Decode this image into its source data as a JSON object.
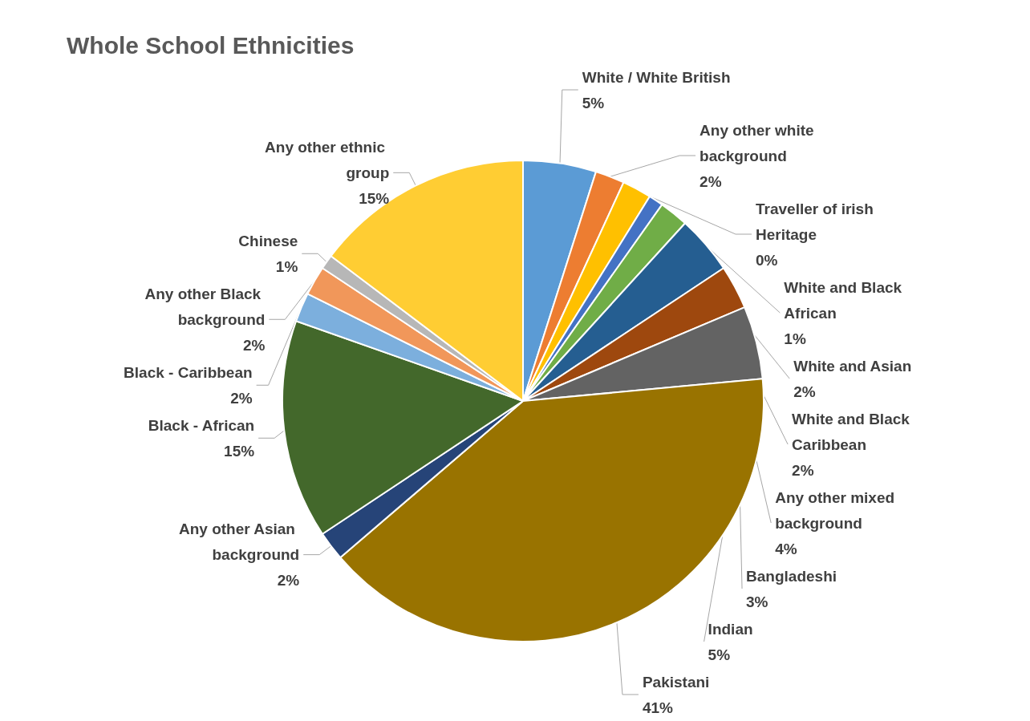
{
  "chart_data": {
    "type": "pie",
    "title": "Whole School Ethnicities",
    "categories": [
      "White / White British",
      "Any other white background",
      "White and Asian",
      "Traveller of irish Heritage",
      "White and Black African",
      "White and Black Caribbean",
      "Any other mixed background",
      "Bangladeshi",
      "Indian",
      "Pakistani",
      "Any other Asian background",
      "Black - African",
      "Black - Caribbean",
      "Any other Black background",
      "Chinese",
      "Any other ethnic group"
    ],
    "values": [
      5,
      2,
      2,
      0,
      1,
      2,
      4,
      3,
      5,
      41,
      2,
      15,
      2,
      2,
      1,
      15
    ],
    "colors": [
      "#5b9bd5",
      "#ed7d31",
      "#ffc000",
      "#4472c4",
      "#4472c4",
      "#70ad47",
      "#255e91",
      "#9e480e",
      "#636363",
      "#997300",
      "#264478",
      "#43682b",
      "#7cafdd",
      "#f1975a",
      "#b7b7b7",
      "#ffcd33"
    ],
    "value_labels": [
      "5%",
      "2%",
      "2%",
      "0%",
      "1%",
      "2%",
      "4%",
      "3%",
      "5%",
      "41%",
      "2%",
      "15%",
      "2%",
      "2%",
      "1%",
      "15%"
    ],
    "legend": false
  }
}
